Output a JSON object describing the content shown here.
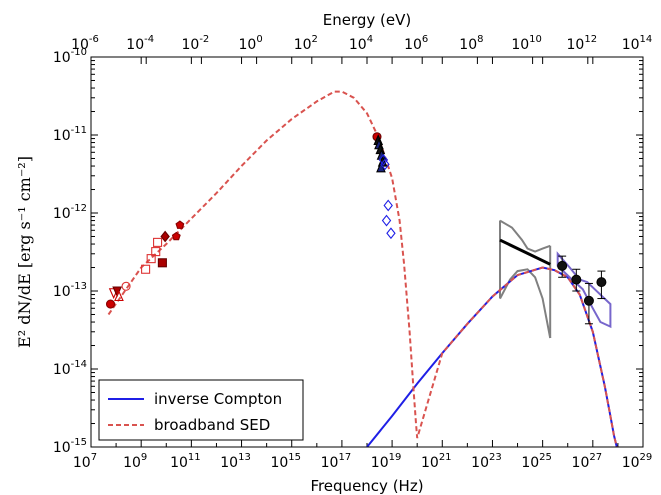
{
  "chart_data": {
    "type": "scatter",
    "title": "",
    "xlabel": "Frequency (Hz)",
    "ylabel": "E² dN/dE [erg s⁻¹ cm⁻²]",
    "top_xlabel": "Energy (eV)",
    "xscale": "log",
    "yscale": "log",
    "xlim": [
      10000000.0,
      1e+29
    ],
    "ylim": [
      1e-15,
      1e-10
    ],
    "top_xlim": [
      1e-06,
      100000000000000.0
    ],
    "grid": false,
    "legend_position": "bottom-left",
    "x_ticks": [
      {
        "v": 7,
        "base": "10",
        "exp": "7"
      },
      {
        "v": 9,
        "base": "10",
        "exp": "9"
      },
      {
        "v": 11,
        "base": "10",
        "exp": "11"
      },
      {
        "v": 13,
        "base": "10",
        "exp": "13"
      },
      {
        "v": 15,
        "base": "10",
        "exp": "15"
      },
      {
        "v": 17,
        "base": "10",
        "exp": "17"
      },
      {
        "v": 19,
        "base": "10",
        "exp": "19"
      },
      {
        "v": 21,
        "base": "10",
        "exp": "21"
      },
      {
        "v": 23,
        "base": "10",
        "exp": "23"
      },
      {
        "v": 25,
        "base": "10",
        "exp": "25"
      },
      {
        "v": 27,
        "base": "10",
        "exp": "27"
      },
      {
        "v": 29,
        "base": "10",
        "exp": "29"
      }
    ],
    "top_ticks": [
      {
        "v": -6,
        "base": "10",
        "exp": "-6"
      },
      {
        "v": -4,
        "base": "10",
        "exp": "-4"
      },
      {
        "v": -2,
        "base": "10",
        "exp": "-2"
      },
      {
        "v": 0,
        "base": "10",
        "exp": "0"
      },
      {
        "v": 2,
        "base": "10",
        "exp": "2"
      },
      {
        "v": 4,
        "base": "10",
        "exp": "4"
      },
      {
        "v": 6,
        "base": "10",
        "exp": "6"
      },
      {
        "v": 8,
        "base": "10",
        "exp": "8"
      },
      {
        "v": 10,
        "base": "10",
        "exp": "10"
      },
      {
        "v": 12,
        "base": "10",
        "exp": "12"
      },
      {
        "v": 14,
        "base": "10",
        "exp": "14"
      }
    ],
    "y_ticks": [
      {
        "v": -15,
        "base": "10",
        "exp": "-15"
      },
      {
        "v": -14,
        "base": "10",
        "exp": "-14"
      },
      {
        "v": -13,
        "base": "10",
        "exp": "-13"
      },
      {
        "v": -12,
        "base": "10",
        "exp": "-12"
      },
      {
        "v": -11,
        "base": "10",
        "exp": "-11"
      },
      {
        "v": -10,
        "base": "10",
        "exp": "-10"
      }
    ],
    "series": [
      {
        "name": "inverse Compton",
        "kind": "line",
        "color": "#1f1fe6",
        "style": "solid",
        "x": [
          1e+18,
          1e+19,
          1e+20,
          1e+21,
          1e+22,
          1e+23,
          1e+24,
          1e+25,
          3e+25,
          1e+26,
          3e+26,
          1e+27,
          3e+27,
          5e+27,
          7e+27,
          9e+27
        ],
        "y": [
          1e-15,
          2.5e-15,
          6.5e-15,
          1.6e-14,
          3.8e-14,
          8.5e-14,
          1.6e-13,
          2e-13,
          1.85e-13,
          1.5e-13,
          9e-14,
          3e-14,
          6e-15,
          2.5e-15,
          1.4e-15,
          1e-15
        ]
      },
      {
        "name": "broadband SED",
        "kind": "line",
        "color": "#d9534f",
        "style": "dashed",
        "x": [
          50000000.0,
          1000000000.0,
          10000000000.0,
          100000000000.0,
          1000000000000.0,
          10000000000000.0,
          100000000000000.0,
          1000000000000000.0,
          1e+16,
          5e+16,
          1e+17,
          3e+17,
          1e+18,
          3e+18,
          1e+19,
          2e+19,
          3e+19,
          5e+19,
          7e+19,
          9e+19,
          1e+20,
          1e+21,
          1e+22,
          1e+23,
          1e+24,
          1e+25,
          3e+25,
          1e+26,
          3e+26,
          1e+27,
          3e+27,
          5e+27,
          7e+27,
          9e+27
        ],
        "y": [
          5e-14,
          2e-13,
          4e-13,
          8.5e-13,
          1.8e-12,
          4e-12,
          8.5e-12,
          1.6e-11,
          2.7e-11,
          3.6e-11,
          3.6e-11,
          3e-11,
          1.9e-11,
          9e-12,
          2.8e-12,
          8e-13,
          2.2e-13,
          3e-14,
          6e-15,
          2e-15,
          1.3e-15,
          1.6e-14,
          3.8e-14,
          8.5e-14,
          1.6e-13,
          2e-13,
          1.85e-13,
          1.5e-13,
          9e-14,
          3e-14,
          6e-15,
          2.5e-15,
          1.4e-15,
          1e-15
        ]
      },
      {
        "name": "",
        "kind": "points",
        "markers": [
          {
            "x": 60000000.0,
            "y": 6.8e-14,
            "shape": "circle",
            "fill": "#cc0000",
            "stroke": "#880000"
          },
          {
            "x": 80000000.0,
            "y": 9.5e-14,
            "shape": "triangle-down",
            "fill": "none",
            "stroke": "#cc0000"
          },
          {
            "x": 110000000.0,
            "y": 1e-13,
            "shape": "triangle-down",
            "fill": "#aa0000",
            "stroke": "#660000"
          },
          {
            "x": 130000000.0,
            "y": 8.5e-14,
            "shape": "triangle",
            "fill": "none",
            "stroke": "#cc0000"
          },
          {
            "x": 250000000.0,
            "y": 1.15e-13,
            "shape": "circle",
            "fill": "none",
            "stroke": "#dd3333"
          },
          {
            "x": 1500000000.0,
            "y": 1.9e-13,
            "shape": "square",
            "fill": "none",
            "stroke": "#dd3333"
          },
          {
            "x": 2500000000.0,
            "y": 2.6e-13,
            "shape": "square",
            "fill": "none",
            "stroke": "#dd3333"
          },
          {
            "x": 3800000000.0,
            "y": 3.2e-13,
            "shape": "square",
            "fill": "none",
            "stroke": "#dd3333"
          },
          {
            "x": 4500000000.0,
            "y": 4.2e-13,
            "shape": "square",
            "fill": "none",
            "stroke": "#dd3333"
          },
          {
            "x": 7000000000.0,
            "y": 2.3e-13,
            "shape": "square",
            "fill": "#aa0000",
            "stroke": "#660000"
          },
          {
            "x": 9000000000.0,
            "y": 5e-13,
            "shape": "diamond",
            "fill": "#aa0000",
            "stroke": "#660000"
          },
          {
            "x": 25000000000.0,
            "y": 5e-13,
            "shape": "pentagon",
            "fill": "#cc0000",
            "stroke": "#880000"
          },
          {
            "x": 35000000000.0,
            "y": 7e-13,
            "shape": "pentagon",
            "fill": "#cc0000",
            "stroke": "#880000"
          },
          {
            "x": 2.5e+18,
            "y": 9.5e-12,
            "shape": "circle",
            "fill": "#cc0000",
            "stroke": "#660000"
          },
          {
            "x": 2.8e+18,
            "y": 8.5e-12,
            "shape": "triangle",
            "fill": "#111111",
            "stroke": "#000000"
          },
          {
            "x": 3e+18,
            "y": 7.5e-12,
            "shape": "triangle",
            "fill": "#1a237e",
            "stroke": "#000000"
          },
          {
            "x": 3.4e+18,
            "y": 6.5e-12,
            "shape": "triangle",
            "fill": "#111111",
            "stroke": "#000000"
          },
          {
            "x": 3.8e+18,
            "y": 5.5e-12,
            "shape": "triangle",
            "fill": "#1a237e",
            "stroke": "#000000"
          },
          {
            "x": 4.2e+18,
            "y": 4.5e-12,
            "shape": "triangle",
            "fill": "#111111",
            "stroke": "#000000"
          },
          {
            "x": 3.6e+18,
            "y": 3.8e-12,
            "shape": "triangle",
            "fill": "#1a237e",
            "stroke": "#000000"
          },
          {
            "x": 4.5e+18,
            "y": 4.8e-12,
            "shape": "diamond",
            "fill": "none",
            "stroke": "#1f1fe6"
          },
          {
            "x": 5.2e+18,
            "y": 4.2e-12,
            "shape": "diamond",
            "fill": "none",
            "stroke": "#1f1fe6"
          },
          {
            "x": 7e+18,
            "y": 1.25e-12,
            "shape": "diamond",
            "fill": "none",
            "stroke": "#1f1fe6"
          },
          {
            "x": 6e+18,
            "y": 8e-13,
            "shape": "diamond",
            "fill": "none",
            "stroke": "#1f1fe6"
          },
          {
            "x": 9e+18,
            "y": 5.5e-13,
            "shape": "diamond",
            "fill": "none",
            "stroke": "#1f1fe6"
          }
        ],
        "errorbars": [
          {
            "x": 6e+25,
            "y": 2.1e-13,
            "lo": 1.5e-13,
            "hi": 2.8e-13
          },
          {
            "x": 2.2e+26,
            "y": 1.4e-13,
            "lo": 1e-13,
            "hi": 1.9e-13
          },
          {
            "x": 7e+26,
            "y": 7.5e-14,
            "lo": 3.8e-14,
            "hi": 1.25e-13
          },
          {
            "x": 2.2e+27,
            "y": 1.3e-13,
            "lo": 8e-14,
            "hi": 1.8e-13
          }
        ]
      }
    ],
    "lat_bowtie": {
      "color": "#808080",
      "x_min": 2e+23,
      "x_max": 2e+25,
      "upper": [
        [
          2e+23,
          8e-13
        ],
        [
          6e+23,
          6.5e-13
        ],
        [
          1.5e+24,
          4.5e-13
        ],
        [
          2.5e+24,
          3.5e-13
        ],
        [
          5e+24,
          3.2e-13
        ],
        [
          1e+25,
          3.5e-13
        ],
        [
          2e+25,
          3.8e-13
        ]
      ],
      "lower": [
        [
          2e+23,
          8e-14
        ],
        [
          5e+23,
          1.4e-13
        ],
        [
          1e+24,
          1.8e-13
        ],
        [
          2.5e+24,
          1.9e-13
        ],
        [
          5e+24,
          1.5e-13
        ],
        [
          1e+25,
          8e-14
        ],
        [
          2e+25,
          2.5e-14
        ]
      ],
      "best_fit": {
        "color": "#000000",
        "from": [
          2e+23,
          4.5e-13
        ],
        "to": [
          2e+25,
          2.2e-13
        ]
      }
    },
    "tev_bowtie": {
      "color": "#7766cc",
      "points": [
        [
          4e+25,
          3e-13
        ],
        [
          1.2e+26,
          2e-13
        ],
        [
          3e+26,
          1.4e-13
        ],
        [
          6e+26,
          1.3e-13
        ],
        [
          1.2e+27,
          1.05e-13
        ],
        [
          5e+27,
          6.8e-14
        ],
        [
          5e+27,
          3.5e-14
        ],
        [
          2e+27,
          4e-14
        ],
        [
          1e+27,
          6e-14
        ],
        [
          4e+26,
          1.05e-13
        ],
        [
          1.5e+26,
          1.4e-13
        ],
        [
          4e+25,
          2.1e-13
        ]
      ]
    }
  }
}
